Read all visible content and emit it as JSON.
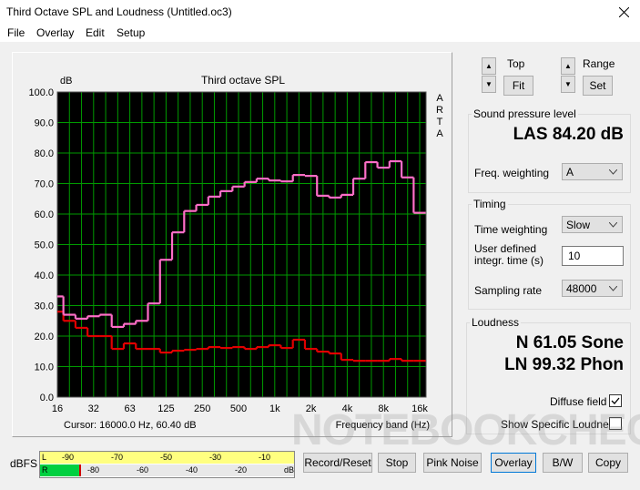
{
  "window": {
    "title": "Third Octave SPL and Loudness (Untitled.oc3)"
  },
  "menu": [
    "File",
    "Overlay",
    "Edit",
    "Setup"
  ],
  "chart_data": {
    "type": "step",
    "title": "Third octave SPL",
    "y_label": "dB",
    "x_label": "Frequency band (Hz)",
    "side_label": "ARTA",
    "cursor_readout": "Cursor: 16000.0 Hz, 60.40 dB",
    "categories": [
      "16",
      null,
      null,
      "32",
      null,
      null,
      "63",
      null,
      null,
      "125",
      null,
      null,
      "250",
      null,
      null,
      "500",
      null,
      null,
      "1k",
      null,
      null,
      "2k",
      null,
      null,
      "4k",
      null,
      null,
      "8k",
      null,
      null,
      "16k"
    ],
    "series": [
      {
        "color": "#ff6ec7",
        "values": [
          33,
          27,
          25.7,
          26.5,
          27,
          23,
          24,
          25,
          30.7,
          45,
          54,
          61,
          63,
          65.7,
          67.5,
          69,
          70.5,
          71.6,
          71,
          70.7,
          72.8,
          72.5,
          66,
          65.4,
          66.3,
          71.6,
          77,
          75.2,
          77.3,
          72,
          60.4
        ]
      },
      {
        "color": "#e00000",
        "values": [
          28,
          25,
          22.7,
          20,
          20,
          15.8,
          17.6,
          15.8,
          15.8,
          14.6,
          15.2,
          15.5,
          15.8,
          16.4,
          16.1,
          16.4,
          15.8,
          16.4,
          17,
          16.1,
          18.8,
          15.8,
          14.9,
          14.3,
          12.2,
          11.9,
          11.9,
          11.9,
          12.5,
          11.9,
          11.9
        ]
      }
    ],
    "ylim": [
      0,
      100
    ],
    "yticks": [
      {
        "value": 0,
        "label": "0.0"
      },
      {
        "value": 10,
        "label": "10.0"
      },
      {
        "value": 20,
        "label": "20.0"
      },
      {
        "value": 30,
        "label": "30.0"
      },
      {
        "value": 40,
        "label": "40.0"
      },
      {
        "value": 50,
        "label": "50.0"
      },
      {
        "value": 60,
        "label": "60.0"
      },
      {
        "value": 70,
        "label": "70.0"
      },
      {
        "value": 80,
        "label": "80.0"
      },
      {
        "value": 90,
        "label": "90.0"
      },
      {
        "value": 100,
        "label": "100.0"
      }
    ],
    "grid": true
  },
  "top_controls": {
    "top": "Top",
    "fit": "Fit",
    "range": "Range",
    "set": "Set"
  },
  "spl": {
    "title": "Sound pressure level",
    "reading": "LAS 84.20 dB",
    "weighting_label": "Freq. weighting",
    "weighting": "A"
  },
  "timing": {
    "title": "Timing",
    "time_weighting_label": "Time weighting",
    "time_weighting": "Slow",
    "integration_label": "User defined integr. time (s)",
    "integration": "10",
    "sampling_label": "Sampling rate",
    "sampling": "48000"
  },
  "loudness": {
    "title": "Loudness",
    "n": "N 61.05 Sone",
    "ln": "LN 99.32 Phon",
    "diffuse": "Diffuse field",
    "specific": "Show Specific Loudness"
  },
  "meter": {
    "label": "dBFS",
    "left": "L",
    "right": "R",
    "top_scale": [
      "-90",
      "-70",
      "-50",
      "-30",
      "-10"
    ],
    "bottom_scale": [
      "-80",
      "-60",
      "-40",
      "-20",
      "dB"
    ]
  },
  "buttons": [
    "Record/Reset",
    "Stop",
    "Pink Noise",
    "Overlay",
    "B/W",
    "Copy"
  ],
  "watermark": "NOTEBOOKCHECK"
}
